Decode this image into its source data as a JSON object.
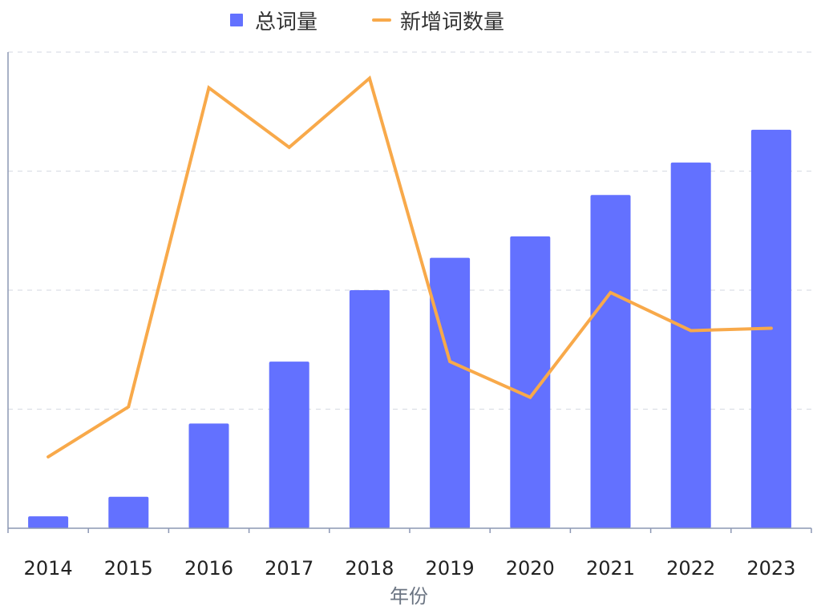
{
  "chart_data": {
    "type": "bar",
    "categories": [
      "2014",
      "2015",
      "2016",
      "2017",
      "2018",
      "2019",
      "2020",
      "2021",
      "2022",
      "2023"
    ],
    "xlabel": "年份",
    "ylabel": "",
    "ylim": [
      0,
      100
    ],
    "grid": true,
    "legend_position": "top",
    "series": [
      {
        "name": "总词量",
        "type": "bar",
        "color": "#6371ff",
        "values": [
          2.5,
          6.6,
          22,
          35,
          50,
          56.8,
          61.3,
          70,
          76.8,
          83.7
        ]
      },
      {
        "name": "新增词数量",
        "type": "line",
        "color": "#f8a94a",
        "values": [
          15,
          25.5,
          92.5,
          80,
          94.5,
          35,
          27.5,
          49.5,
          41.5,
          42
        ]
      }
    ]
  }
}
